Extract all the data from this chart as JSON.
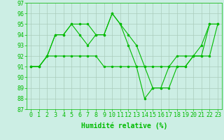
{
  "line1": [
    91,
    91,
    92,
    94,
    94,
    95,
    95,
    95,
    94,
    94,
    96,
    95,
    94,
    93,
    91,
    89,
    89,
    89,
    91,
    91,
    92,
    93,
    95,
    95
  ],
  "line2": [
    91,
    91,
    92,
    94,
    94,
    95,
    94,
    93,
    94,
    94,
    96,
    95,
    93,
    91,
    88,
    89,
    89,
    91,
    91,
    91,
    92,
    92,
    95,
    95
  ],
  "line3": [
    91,
    91,
    92,
    92,
    92,
    92,
    92,
    92,
    92,
    91,
    91,
    91,
    91,
    91,
    91,
    91,
    91,
    91,
    92,
    92,
    92,
    92,
    92,
    95
  ],
  "x": [
    0,
    1,
    2,
    3,
    4,
    5,
    6,
    7,
    8,
    9,
    10,
    11,
    12,
    13,
    14,
    15,
    16,
    17,
    18,
    19,
    20,
    21,
    22,
    23
  ],
  "ylim": [
    87,
    97
  ],
  "yticks": [
    87,
    88,
    89,
    90,
    91,
    92,
    93,
    94,
    95,
    96,
    97
  ],
  "xlabel": "Humidité relative (%)",
  "line_color": "#00bb00",
  "bg_color": "#cceee4",
  "grid_color": "#aaccbb",
  "xlabel_fontsize": 7,
  "tick_fontsize": 6,
  "title_color": "#006600"
}
